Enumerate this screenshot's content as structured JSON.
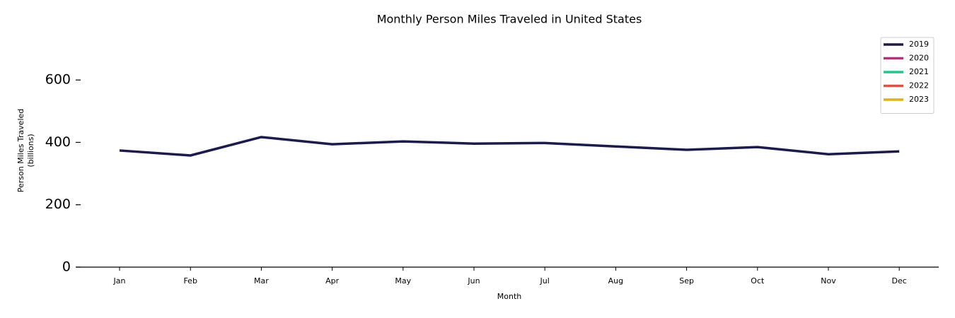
{
  "chart_data": {
    "type": "line",
    "title": "Monthly Person Miles Traveled in United States",
    "xlabel": "Month",
    "ylabel": [
      "Person Miles Traveled",
      "(billions)"
    ],
    "categories": [
      "Jan",
      "Feb",
      "Mar",
      "Apr",
      "May",
      "Jun",
      "Jul",
      "Aug",
      "Sep",
      "Oct",
      "Nov",
      "Dec"
    ],
    "series": [
      {
        "name": "2019",
        "color": "#1c1c4a",
        "values": [
          374,
          358,
          417,
          394,
          403,
          396,
          398,
          387,
          376,
          385,
          362,
          371
        ]
      },
      {
        "name": "2020",
        "color": "#c42a7c",
        "values": [
          null,
          null,
          null,
          null,
          null,
          null,
          null,
          null,
          null,
          null,
          null,
          null
        ]
      },
      {
        "name": "2021",
        "color": "#2ec08a",
        "values": [
          null,
          null,
          null,
          null,
          null,
          null,
          null,
          null,
          null,
          null,
          null,
          null
        ]
      },
      {
        "name": "2022",
        "color": "#d9534a",
        "values": [
          null,
          null,
          null,
          null,
          null,
          null,
          null,
          null,
          null,
          null,
          null,
          null
        ]
      },
      {
        "name": "2023",
        "color": "#e0b020",
        "values": [
          null,
          null,
          null,
          null,
          null,
          null,
          null,
          null,
          null,
          null,
          null,
          null
        ]
      }
    ],
    "ylim": [
      0,
      750
    ],
    "yticks": [
      0,
      200,
      400,
      600
    ],
    "legend": "upper right"
  }
}
